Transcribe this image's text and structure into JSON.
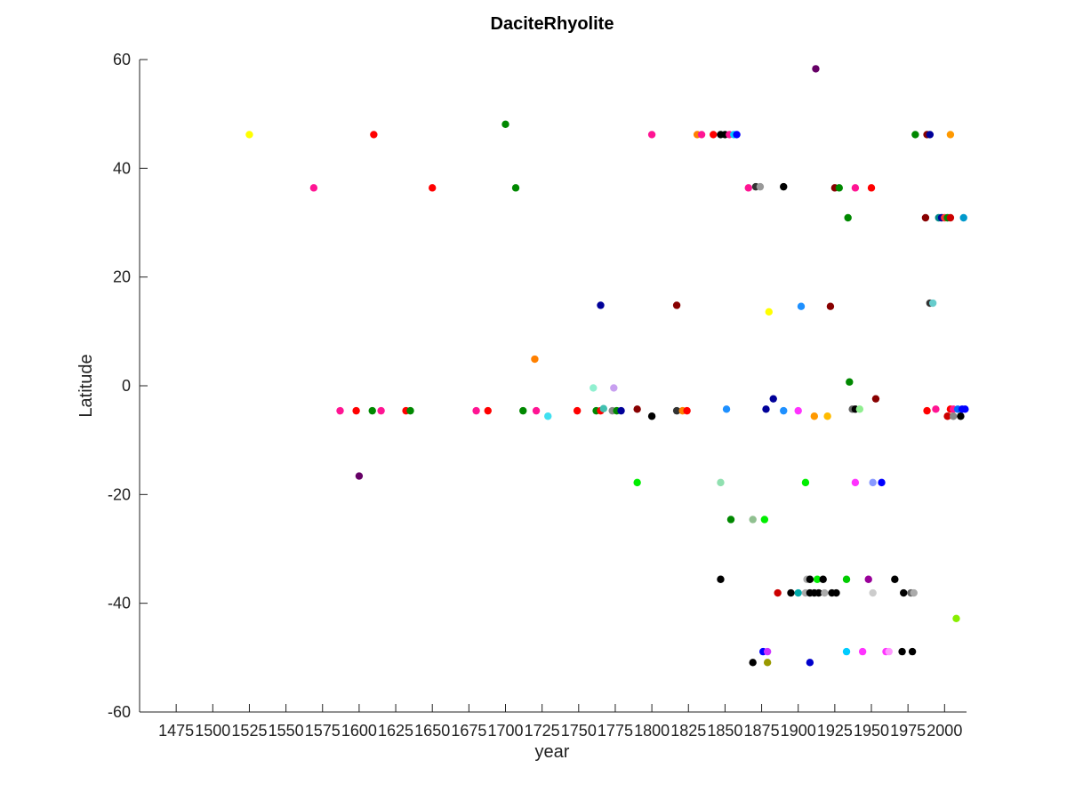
{
  "chart_data": {
    "type": "scatter",
    "title": "DaciteRhyolite",
    "xlabel": "year",
    "ylabel": "Latitude",
    "xlim": [
      1450,
      2015
    ],
    "ylim": [
      -60,
      60
    ],
    "xticks": [
      1475,
      1500,
      1525,
      1550,
      1575,
      1600,
      1625,
      1650,
      1675,
      1700,
      1725,
      1750,
      1775,
      1800,
      1825,
      1850,
      1875,
      1900,
      1925,
      1950,
      1975,
      2000
    ],
    "yticks": [
      -60,
      -40,
      -20,
      0,
      20,
      40,
      60
    ],
    "grid": false,
    "legend": "none",
    "points": [
      {
        "x": 1525,
        "y": 46.2,
        "color": "#ffff00"
      },
      {
        "x": 1569,
        "y": 36.4,
        "color": "#ff1493"
      },
      {
        "x": 1610,
        "y": 46.2,
        "color": "#ff0000"
      },
      {
        "x": 1650,
        "y": 36.4,
        "color": "#ff0000"
      },
      {
        "x": 1700,
        "y": 48.1,
        "color": "#008800"
      },
      {
        "x": 1707,
        "y": 36.4,
        "color": "#008800"
      },
      {
        "x": 1587,
        "y": -4.6,
        "color": "#ff1493"
      },
      {
        "x": 1598,
        "y": -4.6,
        "color": "#ff0000"
      },
      {
        "x": 1609,
        "y": -4.6,
        "color": "#008800"
      },
      {
        "x": 1615,
        "y": -4.6,
        "color": "#ff1493"
      },
      {
        "x": 1632,
        "y": -4.6,
        "color": "#ff0000"
      },
      {
        "x": 1635,
        "y": -4.6,
        "color": "#008800"
      },
      {
        "x": 1680,
        "y": -4.6,
        "color": "#ff1493"
      },
      {
        "x": 1688,
        "y": -4.6,
        "color": "#ff0000"
      },
      {
        "x": 1712,
        "y": -4.6,
        "color": "#008800"
      },
      {
        "x": 1721,
        "y": -4.6,
        "color": "#ff1493"
      },
      {
        "x": 1729,
        "y": -5.6,
        "color": "#40e0f0"
      },
      {
        "x": 1600,
        "y": -16.6,
        "color": "#660066"
      },
      {
        "x": 1720,
        "y": 4.9,
        "color": "#ff8000"
      },
      {
        "x": 1749,
        "y": -4.6,
        "color": "#ff0000"
      },
      {
        "x": 1760,
        "y": -0.4,
        "color": "#90f0d0"
      },
      {
        "x": 1762,
        "y": -4.6,
        "color": "#008800"
      },
      {
        "x": 1765,
        "y": -4.6,
        "color": "#ff0000"
      },
      {
        "x": 1767,
        "y": -4.2,
        "color": "#40c0b0"
      },
      {
        "x": 1774,
        "y": -0.4,
        "color": "#c8a0f0"
      },
      {
        "x": 1773,
        "y": -4.6,
        "color": "#888888"
      },
      {
        "x": 1776,
        "y": -4.6,
        "color": "#008800"
      },
      {
        "x": 1779,
        "y": -4.6,
        "color": "#000099"
      },
      {
        "x": 1765,
        "y": 14.8,
        "color": "#000099"
      },
      {
        "x": 1790,
        "y": -4.3,
        "color": "#880000"
      },
      {
        "x": 1790,
        "y": -17.8,
        "color": "#00ee00"
      },
      {
        "x": 1800,
        "y": -5.6,
        "color": "#000000"
      },
      {
        "x": 1800,
        "y": 46.2,
        "color": "#ff1493"
      },
      {
        "x": 1817,
        "y": -4.6,
        "color": "#333333"
      },
      {
        "x": 1821,
        "y": -4.6,
        "color": "#ff8000"
      },
      {
        "x": 1824,
        "y": -4.6,
        "color": "#ff0000"
      },
      {
        "x": 1817,
        "y": 14.8,
        "color": "#880000"
      },
      {
        "x": 1831,
        "y": 46.2,
        "color": "#ff8000"
      },
      {
        "x": 1834,
        "y": 46.2,
        "color": "#ff1493"
      },
      {
        "x": 1842,
        "y": 46.2,
        "color": "#ff0000"
      },
      {
        "x": 1847,
        "y": 46.2,
        "color": "#000000"
      },
      {
        "x": 1850,
        "y": 46.2,
        "color": "#000000"
      },
      {
        "x": 1853,
        "y": 46.2,
        "color": "#ff1493"
      },
      {
        "x": 1856,
        "y": 46.2,
        "color": "#00ccff"
      },
      {
        "x": 1858,
        "y": 46.2,
        "color": "#0000ff"
      },
      {
        "x": 1847,
        "y": -17.8,
        "color": "#90e0b0"
      },
      {
        "x": 1851,
        "y": -4.3,
        "color": "#1e90ff"
      },
      {
        "x": 1854,
        "y": -24.6,
        "color": "#008800"
      },
      {
        "x": 1869,
        "y": -24.6,
        "color": "#90c090"
      },
      {
        "x": 1877,
        "y": -24.6,
        "color": "#00ee00"
      },
      {
        "x": 1847,
        "y": -35.6,
        "color": "#000000"
      },
      {
        "x": 1866,
        "y": 36.4,
        "color": "#ff1493"
      },
      {
        "x": 1871,
        "y": 36.6,
        "color": "#333333"
      },
      {
        "x": 1874,
        "y": 36.6,
        "color": "#999999"
      },
      {
        "x": 1890,
        "y": 36.6,
        "color": "#000000"
      },
      {
        "x": 1878,
        "y": -4.3,
        "color": "#000099"
      },
      {
        "x": 1883,
        "y": -2.4,
        "color": "#000099"
      },
      {
        "x": 1890,
        "y": -4.6,
        "color": "#1e90ff"
      },
      {
        "x": 1880,
        "y": 13.6,
        "color": "#ffff00"
      },
      {
        "x": 1869,
        "y": -50.9,
        "color": "#000000"
      },
      {
        "x": 1876,
        "y": -48.9,
        "color": "#0000ff"
      },
      {
        "x": 1879,
        "y": -48.9,
        "color": "#cc33ff"
      },
      {
        "x": 1879,
        "y": -50.9,
        "color": "#999900"
      },
      {
        "x": 1886,
        "y": -38.1,
        "color": "#cc0000"
      },
      {
        "x": 1895,
        "y": -38.1,
        "color": "#000000"
      },
      {
        "x": 1900,
        "y": -38.1,
        "color": "#00aaaa"
      },
      {
        "x": 1900,
        "y": -4.6,
        "color": "#ff33ff"
      },
      {
        "x": 1902,
        "y": 14.6,
        "color": "#1e90ff"
      },
      {
        "x": 1905,
        "y": -17.8,
        "color": "#00ee00"
      },
      {
        "x": 1906,
        "y": -35.6,
        "color": "#aaaaaa"
      },
      {
        "x": 1908,
        "y": -35.6,
        "color": "#000000"
      },
      {
        "x": 1905,
        "y": -38.1,
        "color": "#aaaaaa"
      },
      {
        "x": 1908,
        "y": -38.1,
        "color": "#000000"
      },
      {
        "x": 1911,
        "y": -38.1,
        "color": "#000000"
      },
      {
        "x": 1913,
        "y": -35.6,
        "color": "#00ee00"
      },
      {
        "x": 1914,
        "y": -38.1,
        "color": "#000000"
      },
      {
        "x": 1917,
        "y": -35.6,
        "color": "#000000"
      },
      {
        "x": 1918,
        "y": -38.1,
        "color": "#aaaaaa"
      },
      {
        "x": 1908,
        "y": -50.9,
        "color": "#0000cc"
      },
      {
        "x": 1911,
        "y": -5.6,
        "color": "#ff9900"
      },
      {
        "x": 1912,
        "y": 58.3,
        "color": "#660066"
      },
      {
        "x": 1920,
        "y": -5.6,
        "color": "#ffbb00"
      },
      {
        "x": 1922,
        "y": 14.6,
        "color": "#880000"
      },
      {
        "x": 1923,
        "y": -38.1,
        "color": "#000000"
      },
      {
        "x": 1926,
        "y": -38.1,
        "color": "#000000"
      },
      {
        "x": 1925,
        "y": 36.4,
        "color": "#880000"
      },
      {
        "x": 1928,
        "y": 36.4,
        "color": "#008800"
      },
      {
        "x": 1933,
        "y": -35.6,
        "color": "#00cc00"
      },
      {
        "x": 1933,
        "y": -48.9,
        "color": "#00ccff"
      },
      {
        "x": 1934,
        "y": 30.9,
        "color": "#008800"
      },
      {
        "x": 1935,
        "y": 0.7,
        "color": "#008800"
      },
      {
        "x": 1937,
        "y": -4.3,
        "color": "#666666"
      },
      {
        "x": 1939,
        "y": -4.3,
        "color": "#000000"
      },
      {
        "x": 1939,
        "y": 36.4,
        "color": "#ff1493"
      },
      {
        "x": 1939,
        "y": -17.8,
        "color": "#ff33ff"
      },
      {
        "x": 1942,
        "y": -4.3,
        "color": "#90ee90"
      },
      {
        "x": 1944,
        "y": -48.9,
        "color": "#ff33ff"
      },
      {
        "x": 1948,
        "y": -35.6,
        "color": "#990099"
      },
      {
        "x": 1950,
        "y": 36.4,
        "color": "#ff0000"
      },
      {
        "x": 1951,
        "y": -38.1,
        "color": "#cccccc"
      },
      {
        "x": 1951,
        "y": -17.8,
        "color": "#8899ff"
      },
      {
        "x": 1953,
        "y": -2.4,
        "color": "#880000"
      },
      {
        "x": 1957,
        "y": -17.8,
        "color": "#0000ff"
      },
      {
        "x": 1960,
        "y": -48.9,
        "color": "#ff33ff"
      },
      {
        "x": 1962,
        "y": -48.9,
        "color": "#ff99ff"
      },
      {
        "x": 1966,
        "y": -35.6,
        "color": "#000000"
      },
      {
        "x": 1971,
        "y": -48.9,
        "color": "#000000"
      },
      {
        "x": 1972,
        "y": -38.1,
        "color": "#000000"
      },
      {
        "x": 1977,
        "y": -38.1,
        "color": "#666666"
      },
      {
        "x": 1979,
        "y": -38.1,
        "color": "#aaaaaa"
      },
      {
        "x": 1978,
        "y": -48.9,
        "color": "#000000"
      },
      {
        "x": 1980,
        "y": 46.2,
        "color": "#008800"
      },
      {
        "x": 1988,
        "y": 46.2,
        "color": "#880000"
      },
      {
        "x": 1990,
        "y": 46.2,
        "color": "#000099"
      },
      {
        "x": 1987,
        "y": 30.9,
        "color": "#880000"
      },
      {
        "x": 1988,
        "y": -4.6,
        "color": "#ff0000"
      },
      {
        "x": 1990,
        "y": 15.2,
        "color": "#333333"
      },
      {
        "x": 1992,
        "y": 15.2,
        "color": "#66cccc"
      },
      {
        "x": 1994,
        "y": -4.3,
        "color": "#ff1493"
      },
      {
        "x": 1996,
        "y": 30.9,
        "color": "#008888"
      },
      {
        "x": 1998,
        "y": 30.9,
        "color": "#000099"
      },
      {
        "x": 2000,
        "y": 30.9,
        "color": "#ff3333"
      },
      {
        "x": 2002,
        "y": 30.9,
        "color": "#008800"
      },
      {
        "x": 2004,
        "y": 30.9,
        "color": "#cc0000"
      },
      {
        "x": 2002,
        "y": -5.6,
        "color": "#cc0000"
      },
      {
        "x": 2004,
        "y": -4.3,
        "color": "#ff0000"
      },
      {
        "x": 2006,
        "y": -4.3,
        "color": "#ff1493"
      },
      {
        "x": 2004,
        "y": 46.2,
        "color": "#ff9900"
      },
      {
        "x": 2006,
        "y": -5.6,
        "color": "#888888"
      },
      {
        "x": 2009,
        "y": -4.3,
        "color": "#0066ff"
      },
      {
        "x": 2011,
        "y": -5.6,
        "color": "#000000"
      },
      {
        "x": 2012,
        "y": -4.3,
        "color": "#0000ff"
      },
      {
        "x": 2014,
        "y": -4.3,
        "color": "#0000ff"
      },
      {
        "x": 2013,
        "y": 30.9,
        "color": "#0099cc"
      },
      {
        "x": 2008,
        "y": -42.8,
        "color": "#88ee00"
      }
    ]
  }
}
